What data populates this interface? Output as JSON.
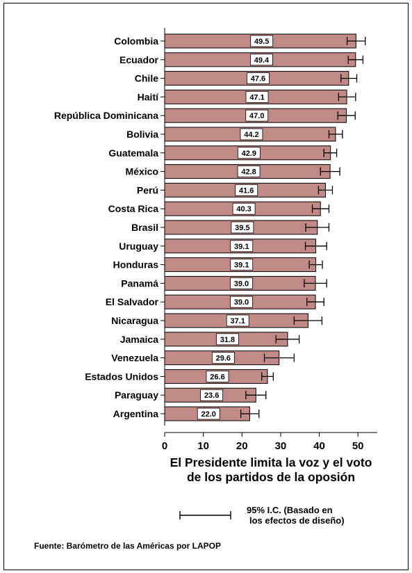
{
  "chart_data": {
    "type": "bar",
    "orientation": "horizontal",
    "categories": [
      "Colombia",
      "Ecuador",
      "Chile",
      "Haití",
      "República Dominicana",
      "Bolivia",
      "Guatemala",
      "México",
      "Perú",
      "Costa Rica",
      "Brasil",
      "Uruguay",
      "Honduras",
      "Panamá",
      "El Salvador",
      "Nicaragua",
      "Jamaica",
      "Venezuela",
      "Estados Unidos",
      "Paraguay",
      "Argentina"
    ],
    "values": [
      49.5,
      49.4,
      47.6,
      47.1,
      47.0,
      44.2,
      42.9,
      42.8,
      41.6,
      40.3,
      39.5,
      39.1,
      39.1,
      39.0,
      39.0,
      37.1,
      31.8,
      29.6,
      26.6,
      23.6,
      22.0
    ],
    "value_labels": [
      "49.5",
      "49.4",
      "47.6",
      "47.1",
      "47.0",
      "44.2",
      "42.9",
      "42.8",
      "41.6",
      "40.3",
      "39.5",
      "39.1",
      "39.1",
      "39.0",
      "39.0",
      "37.1",
      "31.8",
      "29.6",
      "26.6",
      "23.6",
      "22.0"
    ],
    "ci_low": [
      47.2,
      47.5,
      45.6,
      45.0,
      44.8,
      42.5,
      41.2,
      40.3,
      39.8,
      38.2,
      36.5,
      36.4,
      37.4,
      36.1,
      36.8,
      33.5,
      28.8,
      25.8,
      25.1,
      21.0,
      19.7
    ],
    "ci_high": [
      51.9,
      51.3,
      49.7,
      49.4,
      49.3,
      46.0,
      44.5,
      45.3,
      43.4,
      42.5,
      42.5,
      41.9,
      40.8,
      41.9,
      41.2,
      40.7,
      34.8,
      33.5,
      28.1,
      26.2,
      24.4
    ],
    "xlim": [
      0,
      55
    ],
    "xticks": [
      "0",
      "10",
      "20",
      "30",
      "40",
      "50"
    ],
    "xlabel_line1": "El Presidente limita la voz y el voto",
    "xlabel_line2": "de los partidos de la oposión",
    "legend_line1": "95% I.C. (Basado en",
    "legend_line2": "los efectos de diseño)",
    "source": "Fuente: Barómetro de las Américas por LAPOP",
    "colors": {
      "bar": "#c08a87",
      "bar_edge": "#000000",
      "label_bg": "#ffffff"
    },
    "grid": false
  }
}
